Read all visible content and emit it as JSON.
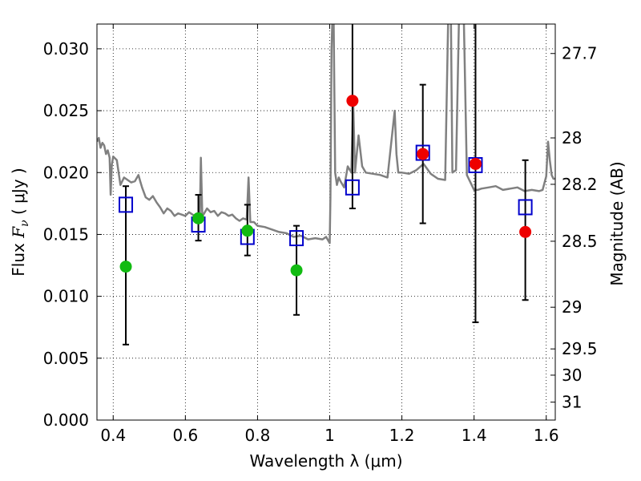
{
  "chart_data": {
    "type": "scatter",
    "xlabel": "Wavelength  λ (μm)",
    "ylabel_prefix": "Flux  ",
    "ylabel_symbol": "F",
    "ylabel_subscript": "ν",
    "ylabel_unit": "  ( μJy )",
    "ylabel_right": "Magnitude (AB)",
    "xlim": [
      0.355,
      1.625
    ],
    "ylim": [
      0.0,
      0.032
    ],
    "grid": true,
    "x_ticks": [
      {
        "value": 0.4,
        "label": "0.4"
      },
      {
        "value": 0.6,
        "label": "0.6"
      },
      {
        "value": 0.8,
        "label": "0.8"
      },
      {
        "value": 1.0,
        "label": "1"
      },
      {
        "value": 1.2,
        "label": "1.2"
      },
      {
        "value": 1.4,
        "label": "1.4"
      },
      {
        "value": 1.6,
        "label": "1.6"
      }
    ],
    "y_ticks": [
      {
        "value": 0.0,
        "label": "0.000"
      },
      {
        "value": 0.005,
        "label": "0.005"
      },
      {
        "value": 0.01,
        "label": "0.010"
      },
      {
        "value": 0.015,
        "label": "0.015"
      },
      {
        "value": 0.02,
        "label": "0.020"
      },
      {
        "value": 0.025,
        "label": "0.025"
      },
      {
        "value": 0.03,
        "label": "0.030"
      }
    ],
    "y2_ticks": [
      {
        "label": "27.7",
        "flux": 0.02962
      },
      {
        "label": "28",
        "flux": 0.0228
      },
      {
        "label": "28.2",
        "flux": 0.01905
      },
      {
        "label": "28.5",
        "flux": 0.01445
      },
      {
        "label": "29",
        "flux": 0.00912
      },
      {
        "label": "29.5",
        "flux": 0.00575
      },
      {
        "label": "30",
        "flux": 0.00363
      },
      {
        "label": "31",
        "flux": 0.00145
      }
    ],
    "colors": {
      "model": "#808080",
      "green": "#11bb11",
      "red": "#ee0000",
      "square": "#0000cc",
      "error": "#000000"
    },
    "model_spectrum": {
      "x": [
        0.355,
        0.36,
        0.365,
        0.37,
        0.375,
        0.38,
        0.385,
        0.39,
        0.393,
        0.396,
        0.4,
        0.41,
        0.42,
        0.43,
        0.44,
        0.45,
        0.46,
        0.47,
        0.475,
        0.48,
        0.49,
        0.5,
        0.51,
        0.52,
        0.53,
        0.54,
        0.55,
        0.56,
        0.57,
        0.58,
        0.59,
        0.6,
        0.61,
        0.62,
        0.63,
        0.64,
        0.643,
        0.647,
        0.65,
        0.66,
        0.67,
        0.68,
        0.69,
        0.7,
        0.71,
        0.72,
        0.73,
        0.74,
        0.75,
        0.76,
        0.77,
        0.775,
        0.78,
        0.79,
        0.8,
        0.82,
        0.84,
        0.86,
        0.88,
        0.9,
        0.92,
        0.94,
        0.96,
        0.98,
        0.99,
        1.0,
        1.002,
        1.005,
        1.01,
        1.015,
        1.02,
        1.025,
        1.03,
        1.04,
        1.05,
        1.06,
        1.065,
        1.07,
        1.08,
        1.09,
        1.1,
        1.12,
        1.14,
        1.16,
        1.18,
        1.185,
        1.19,
        1.2,
        1.22,
        1.24,
        1.26,
        1.28,
        1.3,
        1.32,
        1.33,
        1.335,
        1.34,
        1.35,
        1.36,
        1.37,
        1.38,
        1.4,
        1.41,
        1.42,
        1.44,
        1.46,
        1.48,
        1.5,
        1.52,
        1.54,
        1.56,
        1.58,
        1.59,
        1.6,
        1.605,
        1.61,
        1.615,
        1.62,
        1.625
      ],
      "y": [
        0.0225,
        0.0228,
        0.022,
        0.0224,
        0.0222,
        0.0215,
        0.0218,
        0.0212,
        0.0182,
        0.0206,
        0.0213,
        0.021,
        0.019,
        0.0196,
        0.0194,
        0.0192,
        0.0193,
        0.0198,
        0.0193,
        0.0188,
        0.018,
        0.0178,
        0.0181,
        0.0176,
        0.0172,
        0.0167,
        0.0171,
        0.0169,
        0.0165,
        0.0167,
        0.0166,
        0.0165,
        0.0168,
        0.0166,
        0.0164,
        0.0163,
        0.0212,
        0.0165,
        0.0166,
        0.0171,
        0.0168,
        0.0169,
        0.0165,
        0.0168,
        0.0167,
        0.0165,
        0.0166,
        0.0163,
        0.0161,
        0.0163,
        0.0162,
        0.0196,
        0.016,
        0.016,
        0.0157,
        0.0156,
        0.0154,
        0.0152,
        0.0151,
        0.0148,
        0.0149,
        0.0146,
        0.0147,
        0.0146,
        0.0148,
        0.0143,
        0.018,
        0.03,
        0.035,
        0.02,
        0.019,
        0.0196,
        0.0193,
        0.0188,
        0.0205,
        0.02,
        0.0258,
        0.02,
        0.023,
        0.0205,
        0.02,
        0.0199,
        0.0198,
        0.0196,
        0.025,
        0.0215,
        0.02,
        0.02,
        0.0199,
        0.0202,
        0.0207,
        0.0199,
        0.0195,
        0.0194,
        0.035,
        0.035,
        0.02,
        0.0202,
        0.035,
        0.035,
        0.0198,
        0.0186,
        0.0186,
        0.0187,
        0.0188,
        0.0189,
        0.0186,
        0.0187,
        0.0188,
        0.0185,
        0.0186,
        0.0185,
        0.0186,
        0.0197,
        0.0225,
        0.021,
        0.0198,
        0.0195,
        0.0195
      ]
    },
    "model_photometry": {
      "x": [
        0.435,
        0.636,
        0.772,
        0.908,
        1.063,
        1.258,
        1.404,
        1.542
      ],
      "y": [
        0.0174,
        0.0158,
        0.0148,
        0.0147,
        0.0188,
        0.0216,
        0.0206,
        0.0172
      ]
    },
    "observed": {
      "x": [
        0.435,
        0.636,
        0.772,
        0.908,
        1.063,
        1.258,
        1.404,
        1.542
      ],
      "y": [
        0.0124,
        0.0163,
        0.0153,
        0.0121,
        0.0258,
        0.0215,
        0.0207,
        0.0152
      ],
      "ylow": [
        0.0061,
        0.0145,
        0.0133,
        0.0085,
        0.0171,
        0.0159,
        0.0079,
        0.0097
      ],
      "yhigh": [
        0.0189,
        0.0182,
        0.0174,
        0.0157,
        0.0345,
        0.0271,
        0.0345,
        0.021
      ],
      "color": [
        "green",
        "green",
        "green",
        "green",
        "red",
        "red",
        "red",
        "red"
      ]
    }
  }
}
